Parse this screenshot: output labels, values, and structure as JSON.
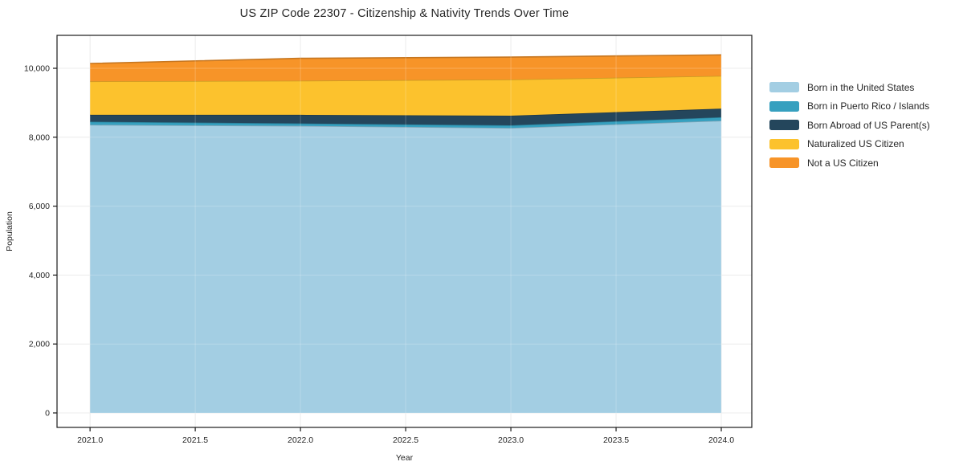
{
  "chart_data": {
    "type": "area",
    "stacked": true,
    "title": "US ZIP Code 22307 - Citizenship & Nativity Trends Over Time",
    "xlabel": "Year",
    "ylabel": "Population",
    "x": [
      2021,
      2022,
      2023,
      2024
    ],
    "series": [
      {
        "name": "Born in the United States",
        "color": "#a3cee3",
        "values": [
          8360,
          8330,
          8270,
          8480
        ]
      },
      {
        "name": "Born in Puerto Rico / Islands",
        "color": "#36a0bf",
        "values": [
          90,
          70,
          75,
          100
        ]
      },
      {
        "name": "Born Abroad of US Parent(s)",
        "color": "#24465c",
        "values": [
          200,
          250,
          280,
          250
        ]
      },
      {
        "name": "Naturalized US Citizen",
        "color": "#fcc22d",
        "values": [
          970,
          990,
          1050,
          950
        ]
      },
      {
        "name": "Not a US Citizen",
        "color": "#f79428",
        "values": [
          520,
          650,
          650,
          610
        ]
      }
    ],
    "xticks": {
      "values": [
        2021.0,
        2021.5,
        2022.0,
        2022.5,
        2023.0,
        2023.5,
        2024.0
      ],
      "labels": [
        "2021.0",
        "2021.5",
        "2022.0",
        "2022.5",
        "2023.0",
        "2023.5",
        "2024.0"
      ]
    },
    "yticks": {
      "values": [
        0,
        2000,
        4000,
        6000,
        8000,
        10000
      ],
      "labels": [
        "0",
        "2,000",
        "4,000",
        "6,000",
        "8,000",
        "10,000"
      ]
    },
    "xlim": [
      2020.843,
      2024.145
    ],
    "ylim": [
      -420,
      10956
    ],
    "grid": true,
    "legend_position": "right",
    "colors": {
      "background": "#ffffff",
      "gridline": "#e7e7e7",
      "spine": "#1a1a1a",
      "text": "#262626"
    }
  }
}
